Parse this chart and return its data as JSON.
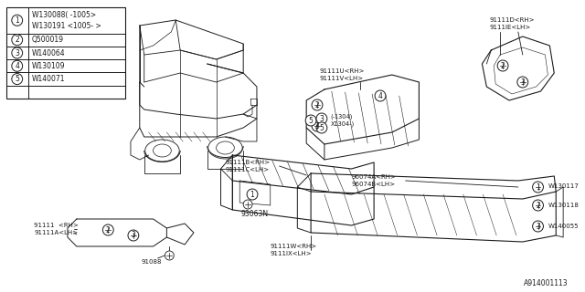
{
  "bg_color": "#ffffff",
  "line_color": "#1a1a1a",
  "title": "A914001113",
  "legend_rows": [
    {
      "num": "1",
      "text1": "W130088( -1005>",
      "text2": "W130191 <1005- >"
    },
    {
      "num": "2",
      "text1": "Q500019",
      "text2": null
    },
    {
      "num": "3",
      "text1": "W140064",
      "text2": null
    },
    {
      "num": "4",
      "text1": "W130109",
      "text2": null
    },
    {
      "num": "5",
      "text1": "W140071",
      "text2": null
    }
  ]
}
